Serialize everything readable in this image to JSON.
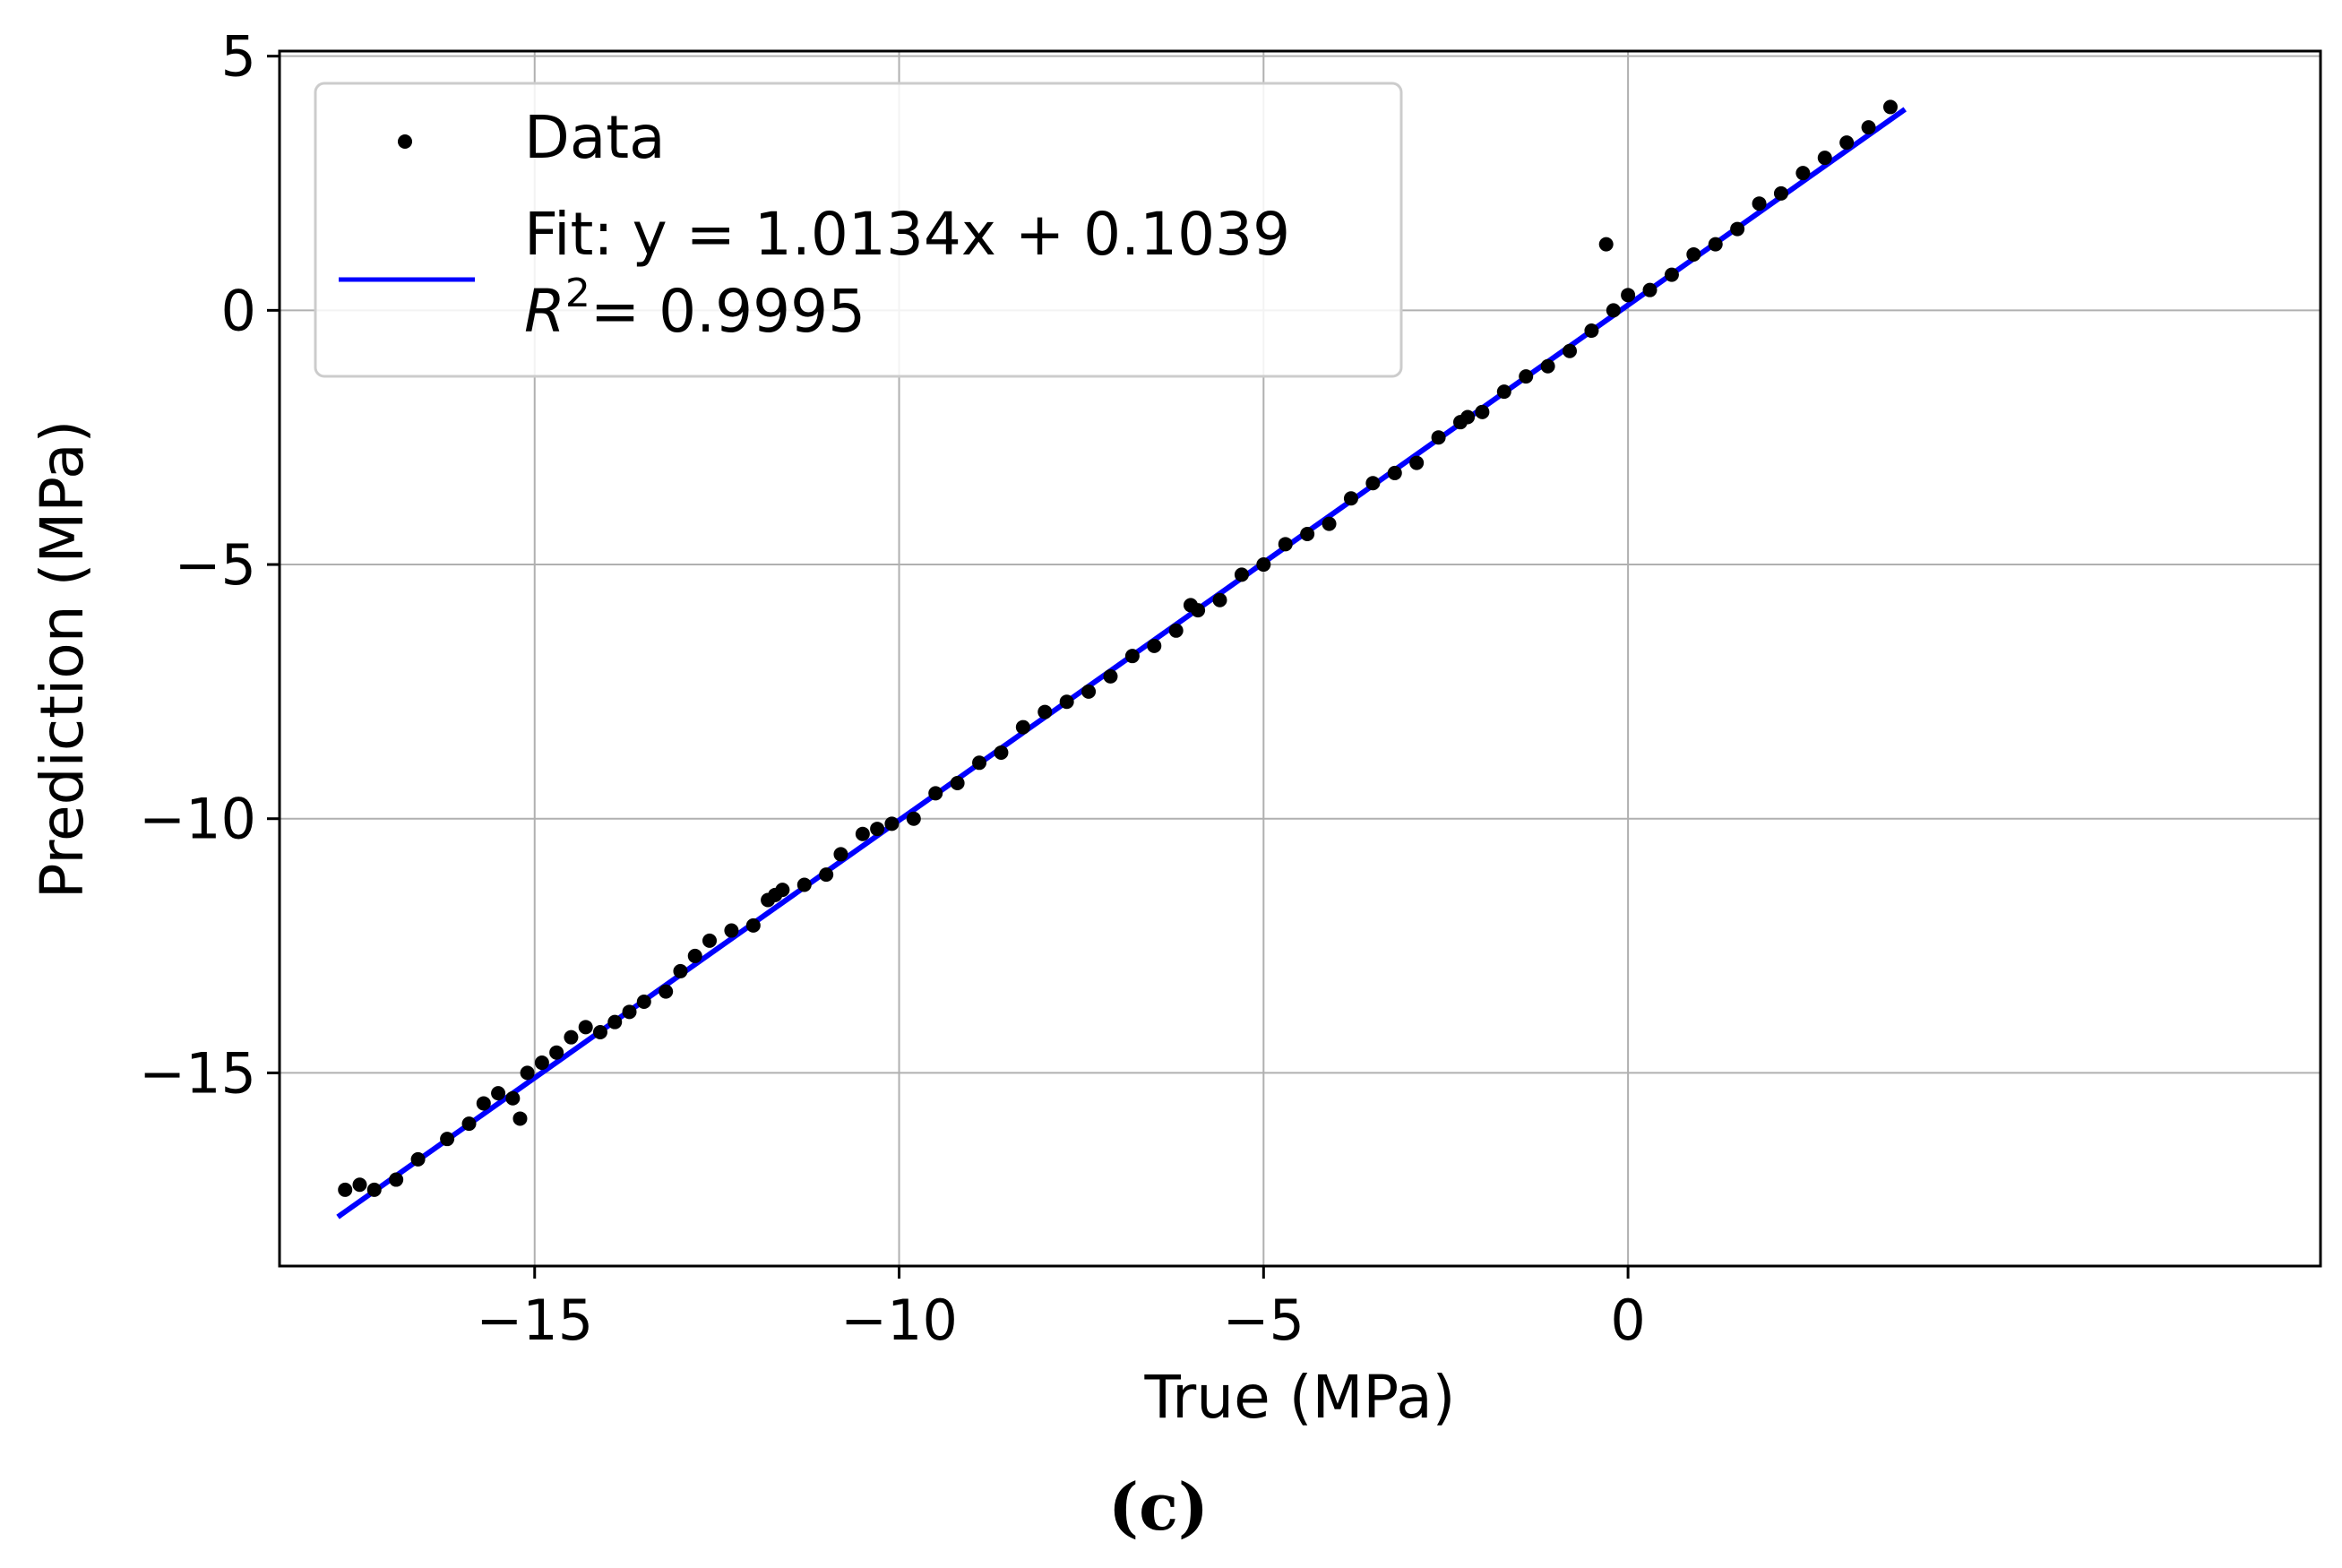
{
  "chart_data": {
    "type": "scatter",
    "xlabel": "True (MPa)",
    "ylabel": "Prediction (MPa)",
    "xlim": [
      -18.5,
      9.5
    ],
    "ylim": [
      -18.8,
      5.1
    ],
    "x_ticks": [
      -15,
      -10,
      -5,
      0
    ],
    "x_tick_labels": [
      "−15",
      "−10",
      "−5",
      "0"
    ],
    "y_ticks": [
      5,
      0,
      -5,
      -10,
      -15
    ],
    "y_tick_labels": [
      "5",
      "0",
      "−5",
      "−10",
      "−15"
    ],
    "grid": true,
    "legend_position": "top-left",
    "series": [
      {
        "name": "Data",
        "kind": "scatter",
        "color": "#000000",
        "x": [
          -17.6,
          -17.4,
          -17.2,
          -16.9,
          -16.6,
          -16.2,
          -15.9,
          -15.7,
          -15.5,
          -15.3,
          -15.1,
          -14.9,
          -14.7,
          -14.5,
          -14.3,
          -14.1,
          -13.9,
          -13.7,
          -13.5,
          -13.2,
          -13.0,
          -12.8,
          -12.6,
          -12.3,
          -12.0,
          -11.8,
          -11.6,
          -11.3,
          -11.0,
          -10.8,
          -10.5,
          -10.3,
          -10.1,
          -9.8,
          -9.5,
          -9.2,
          -8.9,
          -8.6,
          -8.3,
          -8.0,
          -7.7,
          -7.4,
          -7.1,
          -6.8,
          -6.5,
          -6.2,
          -5.9,
          -5.6,
          -5.3,
          -5.0,
          -4.7,
          -4.4,
          -4.1,
          -3.8,
          -3.5,
          -3.2,
          -2.9,
          -2.6,
          -2.3,
          -2.0,
          -1.7,
          -1.4,
          -1.1,
          -0.8,
          -0.5,
          -0.2,
          0.0,
          0.3,
          0.6,
          0.9,
          1.2,
          1.5,
          1.8,
          2.1,
          2.4,
          2.7,
          3.0,
          3.3,
          3.6,
          -15.2,
          -11.7,
          -6.0,
          -2.2,
          -0.3
        ],
        "y": [
          -17.3,
          -17.2,
          -17.3,
          -17.1,
          -16.7,
          -16.3,
          -16.0,
          -15.6,
          -15.4,
          -15.5,
          -15.0,
          -14.8,
          -14.6,
          -14.3,
          -14.1,
          -14.2,
          -14.0,
          -13.8,
          -13.6,
          -13.4,
          -13.0,
          -12.7,
          -12.4,
          -12.2,
          -12.1,
          -11.6,
          -11.4,
          -11.3,
          -11.1,
          -10.7,
          -10.3,
          -10.2,
          -10.1,
          -10.0,
          -9.5,
          -9.3,
          -8.9,
          -8.7,
          -8.2,
          -7.9,
          -7.7,
          -7.5,
          -7.2,
          -6.8,
          -6.6,
          -6.3,
          -5.9,
          -5.7,
          -5.2,
          -5.0,
          -4.6,
          -4.4,
          -4.2,
          -3.7,
          -3.4,
          -3.2,
          -3.0,
          -2.5,
          -2.2,
          -2.0,
          -1.6,
          -1.3,
          -1.1,
          -0.8,
          -0.4,
          0.0,
          0.3,
          0.4,
          0.7,
          1.1,
          1.3,
          1.6,
          2.1,
          2.3,
          2.7,
          3.0,
          3.3,
          3.6,
          4.0,
          -15.9,
          -11.5,
          -5.8,
          -2.1,
          1.3
        ]
      },
      {
        "name": "Fit: y = 1.0134x + 0.1039",
        "name_line2_r2_value": "= 0.9995",
        "kind": "line",
        "color": "#0000ff",
        "slope": 1.0134,
        "intercept": 0.1039,
        "x_range": [
          -17.7,
          3.8
        ]
      }
    ],
    "caption": "(c)"
  }
}
